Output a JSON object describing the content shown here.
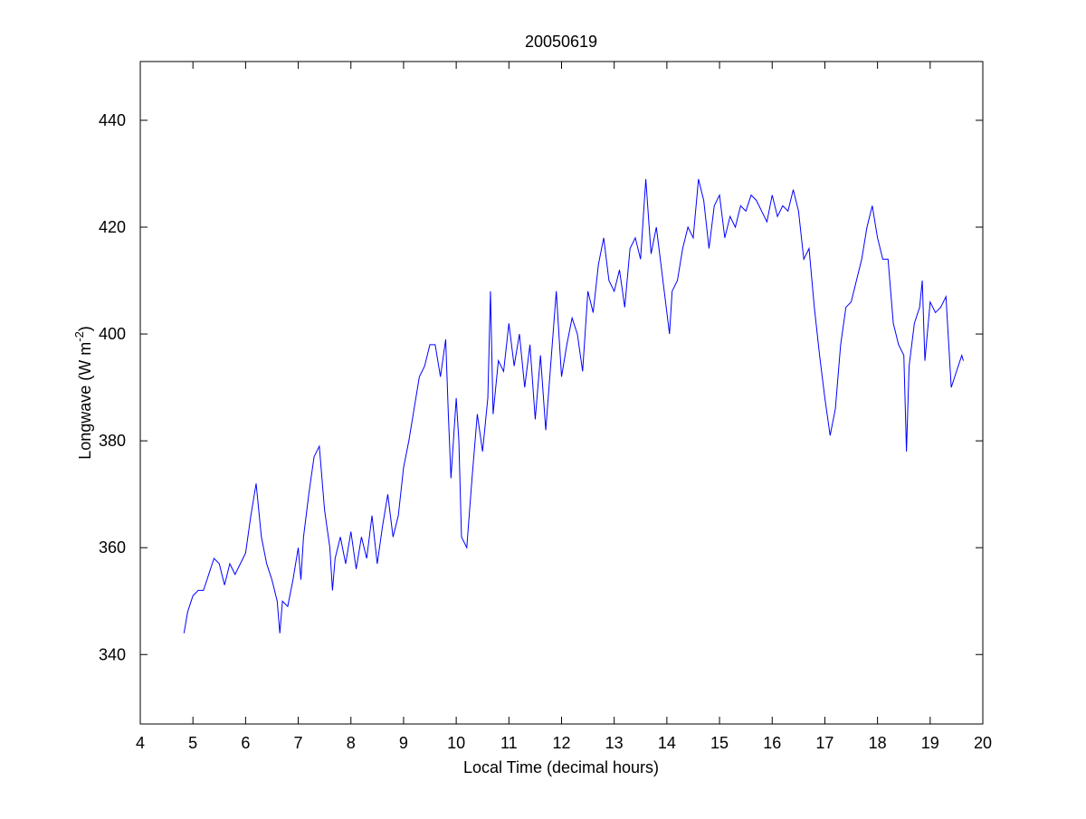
{
  "chart_data": {
    "type": "line",
    "title": "20050619",
    "xlabel": "Local Time (decimal hours)",
    "ylabel_parts": [
      "Longwave (W m",
      "-2",
      ")"
    ],
    "xlim": [
      4,
      20
    ],
    "ylim": [
      327,
      451
    ],
    "xticks": [
      4,
      5,
      6,
      7,
      8,
      9,
      10,
      11,
      12,
      13,
      14,
      15,
      16,
      17,
      18,
      19,
      20
    ],
    "yticks": [
      340,
      360,
      380,
      400,
      420,
      440
    ],
    "grid": false,
    "series": [
      {
        "color": "#0000ff",
        "x": [
          4.83,
          4.9,
          5.0,
          5.1,
          5.2,
          5.3,
          5.4,
          5.5,
          5.6,
          5.7,
          5.8,
          5.9,
          6.0,
          6.1,
          6.2,
          6.3,
          6.4,
          6.5,
          6.6,
          6.65,
          6.7,
          6.8,
          6.9,
          7.0,
          7.05,
          7.1,
          7.2,
          7.3,
          7.4,
          7.5,
          7.6,
          7.65,
          7.7,
          7.8,
          7.9,
          8.0,
          8.1,
          8.2,
          8.3,
          8.4,
          8.5,
          8.6,
          8.7,
          8.8,
          8.9,
          9.0,
          9.1,
          9.2,
          9.3,
          9.4,
          9.5,
          9.6,
          9.7,
          9.8,
          9.85,
          9.9,
          10.0,
          10.05,
          10.1,
          10.2,
          10.3,
          10.4,
          10.5,
          10.6,
          10.65,
          10.7,
          10.8,
          10.9,
          11.0,
          11.1,
          11.2,
          11.3,
          11.4,
          11.5,
          11.6,
          11.7,
          11.8,
          11.9,
          12.0,
          12.1,
          12.2,
          12.3,
          12.4,
          12.5,
          12.6,
          12.7,
          12.8,
          12.9,
          13.0,
          13.1,
          13.2,
          13.3,
          13.4,
          13.5,
          13.6,
          13.7,
          13.8,
          13.9,
          14.0,
          14.05,
          14.1,
          14.2,
          14.3,
          14.4,
          14.5,
          14.6,
          14.7,
          14.8,
          14.9,
          15.0,
          15.1,
          15.2,
          15.3,
          15.4,
          15.5,
          15.6,
          15.7,
          15.8,
          15.9,
          16.0,
          16.1,
          16.2,
          16.3,
          16.4,
          16.5,
          16.6,
          16.7,
          16.8,
          16.9,
          17.0,
          17.1,
          17.2,
          17.3,
          17.4,
          17.5,
          17.6,
          17.7,
          17.8,
          17.9,
          18.0,
          18.1,
          18.2,
          18.3,
          18.4,
          18.5,
          18.55,
          18.6,
          18.7,
          18.8,
          18.85,
          18.9,
          19.0,
          19.1,
          19.2,
          19.3,
          19.4,
          19.5,
          19.6,
          19.63
        ],
        "values": [
          344,
          348,
          351,
          352,
          352,
          355,
          358,
          357,
          353,
          357,
          355,
          357,
          359,
          366,
          372,
          362,
          357,
          354,
          350,
          344,
          350,
          349,
          354,
          360,
          354,
          362,
          370,
          377,
          379,
          367,
          360,
          352,
          358,
          362,
          357,
          363,
          356,
          362,
          358,
          366,
          357,
          364,
          370,
          362,
          366,
          375,
          380,
          386,
          392,
          394,
          398,
          398,
          392,
          399,
          385,
          373,
          388,
          380,
          362,
          360,
          373,
          385,
          378,
          388,
          408,
          385,
          395,
          393,
          402,
          394,
          400,
          390,
          398,
          384,
          396,
          382,
          395,
          408,
          392,
          398,
          403,
          400,
          393,
          408,
          404,
          413,
          418,
          410,
          408,
          412,
          405,
          416,
          418,
          414,
          429,
          415,
          420,
          412,
          404,
          400,
          408,
          410,
          416,
          420,
          418,
          429,
          425,
          416,
          424,
          426,
          418,
          422,
          420,
          424,
          423,
          426,
          425,
          423,
          421,
          426,
          422,
          424,
          423,
          427,
          423,
          414,
          416,
          405,
          396,
          388,
          381,
          386,
          398,
          405,
          406,
          410,
          414,
          420,
          424,
          418,
          414,
          414,
          402,
          398,
          396,
          378,
          394,
          402,
          405,
          410,
          395,
          406,
          404,
          405,
          407,
          390,
          393,
          396,
          395
        ]
      }
    ]
  }
}
